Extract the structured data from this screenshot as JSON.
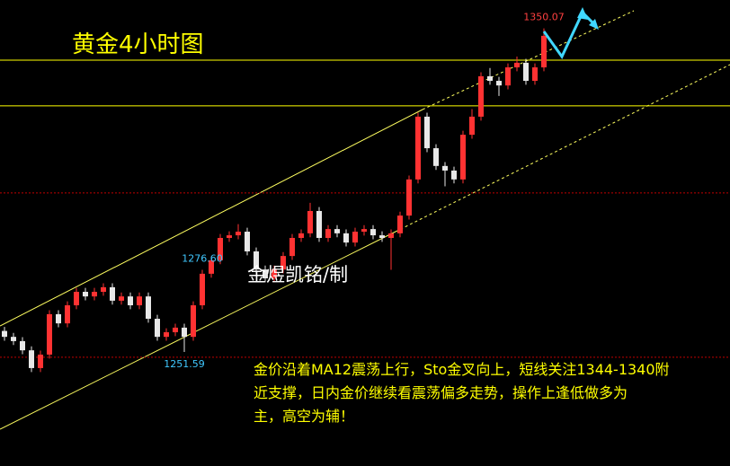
{
  "chart_data": {
    "type": "candlestick",
    "title": "黄金4小时图",
    "watermark": "金煜凯铭/制",
    "commentary": [
      "金价沿着MA12震荡上行，Sto金叉向上，短线关注1344-1340附",
      "近支撑，日内金价继续看震荡偏多走势，操作上逢低做多为",
      "主，高空为辅！"
    ],
    "open": [
      1258.0,
      1256.2,
      1254.9,
      1252.1,
      1246.7,
      1250.8,
      1263.1,
      1260.3,
      1265.8,
      1269.9,
      1268.5,
      1269.9,
      1271.3,
      1267.2,
      1268.5,
      1265.8,
      1268.5,
      1261.7,
      1256.2,
      1257.6,
      1259.0,
      1256.2,
      1265.8,
      1275.4,
      1279.5,
      1286.3,
      1287.1,
      1288.2,
      1282.2,
      1276.7,
      1274.0,
      1276.7,
      1280.8,
      1286.3,
      1287.7,
      1294.5,
      1286.3,
      1289.0,
      1287.7,
      1284.9,
      1288.2,
      1289.0,
      1287.1,
      1286.3,
      1287.7,
      1293.1,
      1304.1,
      1323.2,
      1313.6,
      1308.2,
      1306.8,
      1304.1,
      1317.7,
      1323.2,
      1335.5,
      1334.1,
      1332.7,
      1338.2,
      1339.6,
      1334.1,
      1338.2
    ],
    "high": [
      1259.2,
      1257.4,
      1256.1,
      1253.3,
      1252.0,
      1264.3,
      1264.3,
      1267.0,
      1271.1,
      1271.1,
      1271.1,
      1272.5,
      1272.5,
      1269.7,
      1269.7,
      1269.7,
      1269.7,
      1262.9,
      1258.8,
      1260.2,
      1260.2,
      1267.0,
      1276.6,
      1280.7,
      1287.5,
      1288.3,
      1290.5,
      1289.4,
      1283.4,
      1277.9,
      1277.9,
      1282.0,
      1287.5,
      1288.9,
      1297.0,
      1295.7,
      1290.2,
      1290.2,
      1288.9,
      1289.4,
      1290.2,
      1290.2,
      1288.3,
      1288.9,
      1294.3,
      1305.3,
      1324.4,
      1324.4,
      1314.8,
      1309.4,
      1308.0,
      1318.9,
      1325.5,
      1336.7,
      1338.0,
      1335.3,
      1339.4,
      1341.5,
      1340.8,
      1339.4,
      1350.07
    ],
    "low": [
      1255.0,
      1253.7,
      1250.9,
      1245.5,
      1245.5,
      1249.6,
      1259.1,
      1259.1,
      1264.6,
      1267.3,
      1267.3,
      1268.7,
      1266.0,
      1266.0,
      1264.6,
      1264.6,
      1260.5,
      1255.0,
      1255.0,
      1256.4,
      1251.59,
      1255.0,
      1264.6,
      1274.2,
      1278.3,
      1285.1,
      1285.9,
      1281.0,
      1275.5,
      1272.8,
      1272.8,
      1275.5,
      1279.6,
      1285.1,
      1286.5,
      1285.1,
      1285.1,
      1286.5,
      1283.7,
      1283.7,
      1287.0,
      1285.9,
      1285.1,
      1276.6,
      1286.5,
      1291.9,
      1302.9,
      1312.4,
      1307.0,
      1302.0,
      1302.9,
      1302.9,
      1316.5,
      1322.0,
      1332.9,
      1329.5,
      1331.5,
      1337.0,
      1332.9,
      1332.9,
      1337.0
    ],
    "close": [
      1256.2,
      1254.9,
      1252.1,
      1246.7,
      1250.8,
      1263.1,
      1260.3,
      1265.8,
      1269.9,
      1268.5,
      1269.9,
      1271.3,
      1267.2,
      1268.5,
      1265.8,
      1268.5,
      1261.7,
      1256.2,
      1257.6,
      1259.0,
      1256.2,
      1265.8,
      1275.4,
      1279.5,
      1286.3,
      1287.1,
      1288.2,
      1282.2,
      1276.7,
      1274.0,
      1276.7,
      1280.8,
      1286.3,
      1287.7,
      1294.5,
      1286.3,
      1289.0,
      1287.7,
      1284.9,
      1288.2,
      1289.0,
      1287.1,
      1286.3,
      1287.7,
      1293.1,
      1304.1,
      1323.2,
      1313.6,
      1308.2,
      1306.8,
      1304.1,
      1317.7,
      1323.2,
      1335.5,
      1334.1,
      1332.7,
      1338.2,
      1339.6,
      1334.1,
      1338.2,
      1347.8
    ],
    "ylim": [
      1216.9,
      1358.7
    ],
    "up_color": "#ff3232",
    "down_color": "#e8e8e8",
    "levels": [
      {
        "value": 1340.4,
        "color": "#ffff00",
        "style": "solid"
      },
      {
        "value": 1326.5,
        "color": "#ffff00",
        "style": "solid"
      },
      {
        "value": 1300.0,
        "color": "#c00000",
        "style": "dotted"
      },
      {
        "value": 1250.0,
        "color": "#c00000",
        "style": "dotted"
      }
    ],
    "annotations": [
      {
        "label": "1350.07",
        "value": 1350.07,
        "color": "#ff4040"
      },
      {
        "label": "1276.60",
        "value": 1276.6,
        "color": "#40c8ff"
      },
      {
        "label": "1251.59",
        "value": 1251.59,
        "color": "#40c8ff"
      }
    ]
  }
}
